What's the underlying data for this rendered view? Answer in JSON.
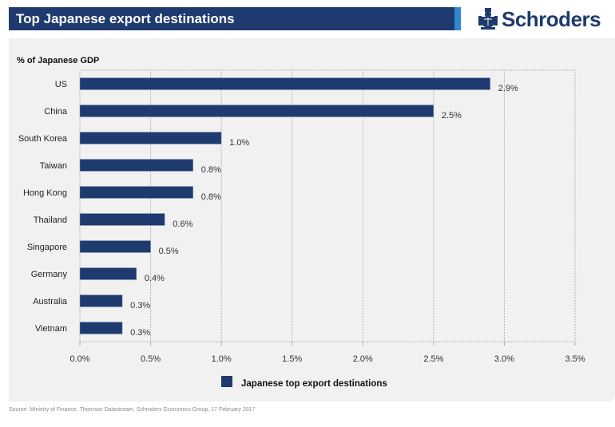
{
  "header": {
    "title": "Top Japanese export destinations",
    "brand": "Schroders",
    "brand_icon": "crest-icon",
    "colors": {
      "title_bg": "#1e3a6e",
      "accent": "#2f86d1",
      "bar": "#1e3a6e",
      "panel_bg": "#f2f1f2"
    }
  },
  "chart_data": {
    "type": "bar",
    "orientation": "horizontal",
    "title": "Top Japanese export destinations",
    "ylabel": "% of Japanese GDP",
    "xlabel": "",
    "categories": [
      "US",
      "China",
      "South Korea",
      "Taiwan",
      "Hong Kong",
      "Thailand",
      "Singapore",
      "Germany",
      "Australia",
      "Vietnam"
    ],
    "values": [
      2.9,
      2.5,
      1.0,
      0.8,
      0.8,
      0.6,
      0.5,
      0.4,
      0.3,
      0.3
    ],
    "data_labels": [
      "2.9%",
      "2.5%",
      "1.0%",
      "0.8%",
      "0.8%",
      "0.6%",
      "0.5%",
      "0.4%",
      "0.3%",
      "0.3%"
    ],
    "xlim": [
      0,
      3.5
    ],
    "x_ticks": [
      0,
      0.5,
      1.0,
      1.5,
      2.0,
      2.5,
      3.0,
      3.5
    ],
    "x_tick_labels": [
      "0.0%",
      "0.5%",
      "1.0%",
      "1.5%",
      "2.0%",
      "2.5%",
      "3.0%",
      "3.5%"
    ],
    "grid": "vertical dotted",
    "legend": {
      "placement": "bottom-center",
      "entries": [
        "Japanese top export destinations"
      ]
    }
  },
  "footer": {
    "source": "Source: Ministry of Finance, Thomson Datastream, Schroders Economics Group, 17 February 2017"
  }
}
